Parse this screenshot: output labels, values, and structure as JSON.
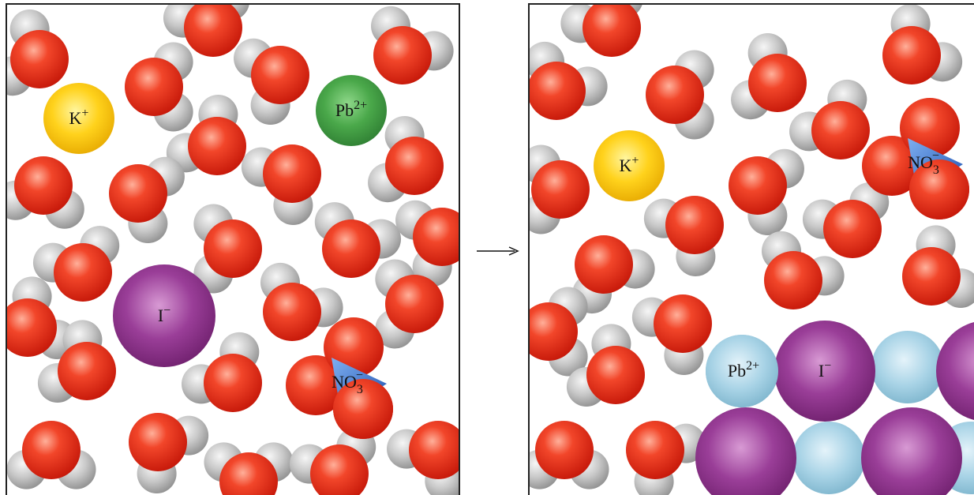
{
  "panels": [
    {
      "ions": [
        {
          "symbol": "K",
          "charge": "+"
        },
        {
          "symbol": "Pb",
          "charge": "2+"
        },
        {
          "symbol": "I",
          "charge": "−"
        },
        {
          "symbol": "NO",
          "subscript": "3",
          "charge": "−"
        }
      ]
    },
    {
      "ions": [
        {
          "symbol": "K",
          "charge": "+"
        },
        {
          "symbol": "NO",
          "subscript": "3",
          "charge": "−"
        },
        {
          "symbol": "Pb",
          "charge": "2+"
        },
        {
          "symbol": "I",
          "charge": "−"
        }
      ]
    }
  ]
}
